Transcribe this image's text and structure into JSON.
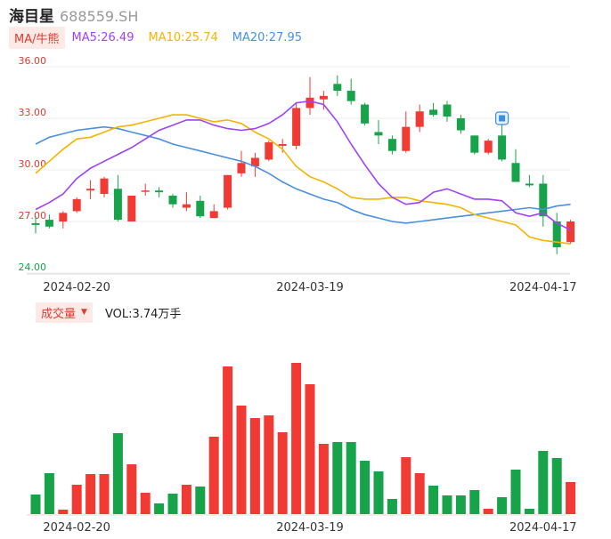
{
  "header": {
    "name": "海目星",
    "code": "688559.SH"
  },
  "ma_legend": {
    "tag": "MA/牛熊",
    "items": [
      {
        "label": "MA5:26.49",
        "color": "#a142f4"
      },
      {
        "label": "MA10:25.74",
        "color": "#f5b400"
      },
      {
        "label": "MA20:27.95",
        "color": "#4a90e2"
      }
    ]
  },
  "volume_legend": {
    "tag": "成交量",
    "caret": "▼",
    "value": "VOL:3.74万手"
  },
  "colors": {
    "up": "#f03a33",
    "down": "#17a34a"
  },
  "chart_data": [
    {
      "type": "candlestick",
      "y_ticks": [
        "36.00",
        "33.00",
        "30.00",
        "27.00",
        "24.00"
      ],
      "ylim": [
        24,
        36
      ],
      "x_tick_labels": [
        "2024-02-20",
        "2024-03-19",
        "2024-04-17"
      ],
      "grid": true,
      "candles": [
        {
          "o": 26.9,
          "h": 27.3,
          "l": 26.3,
          "c": 26.8
        },
        {
          "o": 27.1,
          "h": 27.4,
          "l": 26.6,
          "c": 26.7
        },
        {
          "o": 27.0,
          "h": 27.6,
          "l": 26.6,
          "c": 27.5
        },
        {
          "o": 27.6,
          "h": 28.4,
          "l": 27.5,
          "c": 28.3
        },
        {
          "o": 28.8,
          "h": 29.4,
          "l": 28.3,
          "c": 28.9
        },
        {
          "o": 28.6,
          "h": 29.6,
          "l": 28.4,
          "c": 29.5
        },
        {
          "o": 28.9,
          "h": 29.7,
          "l": 27.0,
          "c": 27.1
        },
        {
          "o": 27.0,
          "h": 28.5,
          "l": 27.0,
          "c": 28.5
        },
        {
          "o": 28.8,
          "h": 29.2,
          "l": 28.5,
          "c": 28.8
        },
        {
          "o": 28.8,
          "h": 29.0,
          "l": 28.4,
          "c": 28.7
        },
        {
          "o": 28.5,
          "h": 28.6,
          "l": 27.8,
          "c": 28.0
        },
        {
          "o": 27.8,
          "h": 28.7,
          "l": 27.6,
          "c": 28.0
        },
        {
          "o": 28.2,
          "h": 28.5,
          "l": 27.2,
          "c": 27.3
        },
        {
          "o": 27.2,
          "h": 28.0,
          "l": 27.2,
          "c": 27.6
        },
        {
          "o": 27.8,
          "h": 29.7,
          "l": 27.7,
          "c": 29.7
        },
        {
          "o": 29.8,
          "h": 31.1,
          "l": 29.6,
          "c": 30.4
        },
        {
          "o": 30.2,
          "h": 31.0,
          "l": 29.6,
          "c": 30.7
        },
        {
          "o": 30.6,
          "h": 31.7,
          "l": 30.5,
          "c": 31.6
        },
        {
          "o": 31.4,
          "h": 31.8,
          "l": 31.0,
          "c": 31.5
        },
        {
          "o": 31.4,
          "h": 33.9,
          "l": 31.2,
          "c": 33.6
        },
        {
          "o": 33.6,
          "h": 35.4,
          "l": 33.2,
          "c": 34.2
        },
        {
          "o": 34.1,
          "h": 34.6,
          "l": 33.5,
          "c": 34.3
        },
        {
          "o": 35.0,
          "h": 35.5,
          "l": 34.3,
          "c": 34.6
        },
        {
          "o": 34.6,
          "h": 35.3,
          "l": 33.8,
          "c": 34.0
        },
        {
          "o": 33.8,
          "h": 33.9,
          "l": 32.6,
          "c": 32.7
        },
        {
          "o": 32.2,
          "h": 32.9,
          "l": 31.5,
          "c": 32.0
        },
        {
          "o": 31.8,
          "h": 32.0,
          "l": 30.9,
          "c": 31.1
        },
        {
          "o": 31.1,
          "h": 33.4,
          "l": 31.0,
          "c": 32.5
        },
        {
          "o": 32.5,
          "h": 33.8,
          "l": 32.2,
          "c": 33.4
        },
        {
          "o": 33.5,
          "h": 33.9,
          "l": 33.1,
          "c": 33.2
        },
        {
          "o": 33.8,
          "h": 34.0,
          "l": 32.8,
          "c": 33.1
        },
        {
          "o": 33.0,
          "h": 33.2,
          "l": 32.1,
          "c": 32.3
        },
        {
          "o": 32.0,
          "h": 32.0,
          "l": 30.9,
          "c": 31.0
        },
        {
          "o": 31.0,
          "h": 31.8,
          "l": 30.9,
          "c": 31.7
        },
        {
          "o": 32.0,
          "h": 32.9,
          "l": 30.5,
          "c": 30.6
        },
        {
          "o": 30.4,
          "h": 31.2,
          "l": 29.3,
          "c": 29.3
        },
        {
          "o": 29.2,
          "h": 29.7,
          "l": 29.0,
          "c": 29.1
        },
        {
          "o": 29.2,
          "h": 29.7,
          "l": 26.7,
          "c": 27.3
        },
        {
          "o": 27.0,
          "h": 27.5,
          "l": 25.1,
          "c": 25.5
        },
        {
          "o": 25.8,
          "h": 27.1,
          "l": 25.7,
          "c": 27.0
        }
      ],
      "ma5": [
        27.7,
        28.1,
        28.6,
        29.5,
        30.1,
        30.5,
        30.9,
        31.3,
        31.8,
        32.3,
        32.6,
        32.9,
        32.9,
        32.6,
        32.4,
        32.3,
        32.4,
        32.7,
        33.2,
        33.9,
        34.0,
        33.8,
        32.8,
        31.5,
        30.3,
        29.2,
        28.4,
        28.0,
        28.1,
        28.7,
        28.9,
        28.6,
        28.3,
        28.3,
        28.2,
        27.5,
        27.3,
        27.5,
        26.9,
        26.5
      ],
      "ma10": [
        29.8,
        30.5,
        31.2,
        31.8,
        31.9,
        32.2,
        32.5,
        32.6,
        32.8,
        33.0,
        33.2,
        33.2,
        33.0,
        32.8,
        32.9,
        32.7,
        32.2,
        31.8,
        31.2,
        30.2,
        29.6,
        29.3,
        28.9,
        28.4,
        28.3,
        28.3,
        28.4,
        28.4,
        28.2,
        28.1,
        28.0,
        27.8,
        27.4,
        27.2,
        27.0,
        26.8,
        26.1,
        25.9,
        25.8,
        25.7
      ],
      "ma20": [
        31.5,
        31.9,
        32.1,
        32.3,
        32.4,
        32.5,
        32.4,
        32.2,
        32.0,
        31.8,
        31.5,
        31.3,
        31.1,
        30.9,
        30.7,
        30.5,
        30.2,
        29.8,
        29.3,
        28.9,
        28.6,
        28.3,
        28.1,
        27.7,
        27.4,
        27.2,
        27.0,
        26.9,
        27.0,
        27.1,
        27.2,
        27.3,
        27.4,
        27.5,
        27.6,
        27.7,
        27.8,
        27.7,
        27.9,
        28.0
      ]
    },
    {
      "type": "bar",
      "label": "VOL",
      "x_tick_labels": [
        "2024-02-20",
        "2024-03-19",
        "2024-04-17"
      ],
      "values": [
        22,
        46,
        5,
        33,
        45,
        45,
        91,
        56,
        24,
        12,
        23,
        33,
        31,
        87,
        166,
        122,
        108,
        111,
        92,
        170,
        146,
        79,
        81,
        81,
        60,
        48,
        17,
        64,
        46,
        32,
        21,
        21,
        27,
        6,
        19,
        50,
        6,
        71,
        63,
        36
      ]
    }
  ]
}
